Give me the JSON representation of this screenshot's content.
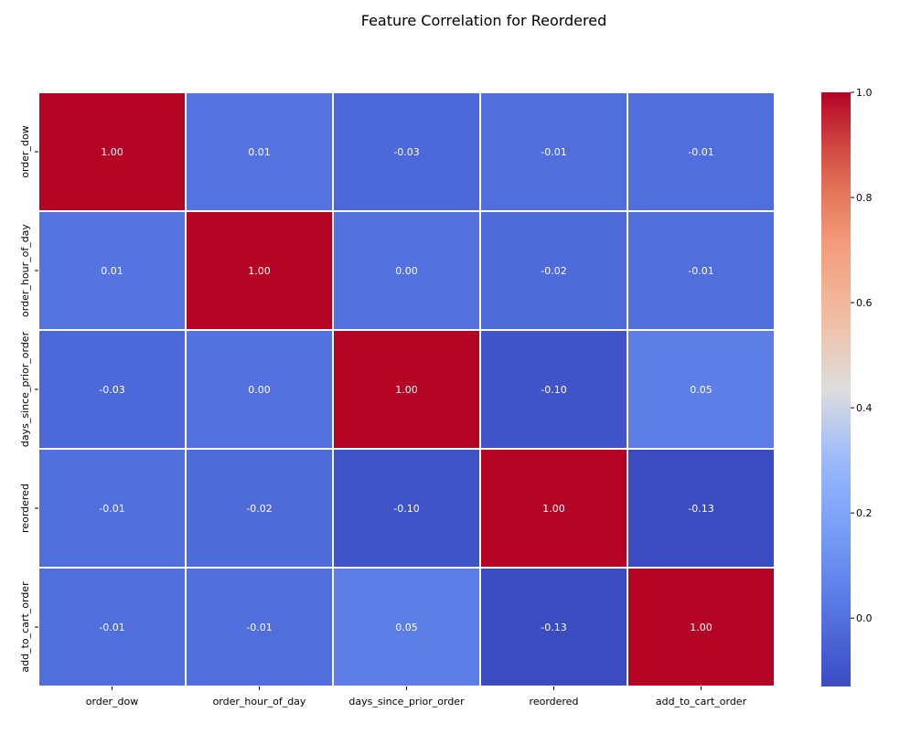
{
  "chart_data": {
    "type": "heatmap",
    "title": "Feature Correlation for Reordered",
    "xlabel": "",
    "ylabel": "",
    "x_categories": [
      "order_dow",
      "order_hour_of_day",
      "days_since_prior_order",
      "reordered",
      "add_to_cart_order"
    ],
    "y_categories": [
      "order_dow",
      "order_hour_of_day",
      "days_since_prior_order",
      "reordered",
      "add_to_cart_order"
    ],
    "values": [
      [
        1.0,
        0.01,
        -0.03,
        -0.01,
        -0.01
      ],
      [
        0.01,
        1.0,
        0.0,
        -0.02,
        -0.01
      ],
      [
        -0.03,
        0.0,
        1.0,
        -0.1,
        0.05
      ],
      [
        -0.01,
        -0.02,
        -0.1,
        1.0,
        -0.13
      ],
      [
        -0.01,
        -0.01,
        0.05,
        -0.13,
        1.0
      ]
    ],
    "value_format": "0.00",
    "colormap": "coolwarm",
    "color_range": [
      -0.13,
      1.0
    ],
    "colorbar": {
      "ticks": [
        0.0,
        0.2,
        0.4,
        0.6,
        0.8,
        1.0
      ],
      "tick_labels": [
        "0.0",
        "0.2",
        "0.4",
        "0.6",
        "0.8",
        "1.0"
      ],
      "placement": "right"
    },
    "grid": false,
    "cell_border_color": "#ffffff",
    "annotation_color": "#ffffff"
  }
}
